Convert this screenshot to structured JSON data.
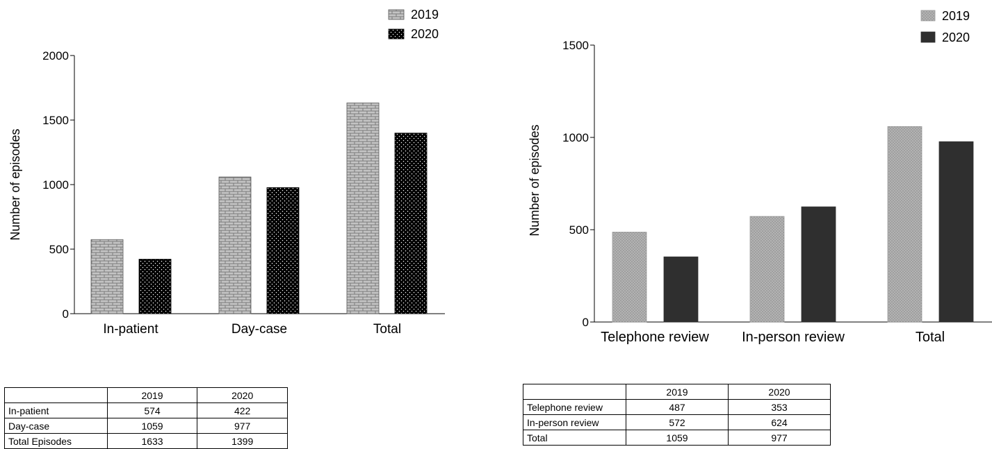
{
  "chart_data": [
    {
      "type": "bar",
      "categories": [
        "In-patient",
        "Day-case",
        "Total"
      ],
      "series": [
        {
          "name": "2019",
          "values": [
            574,
            1059,
            1633
          ]
        },
        {
          "name": "2020",
          "values": [
            422,
            977,
            1399
          ]
        }
      ],
      "ylabel": "Number of episodes",
      "ylim": [
        0,
        2000
      ],
      "yticks": [
        "0",
        "500",
        "1000",
        "1500",
        "2000"
      ],
      "legend_position": "top-right",
      "grid": false
    },
    {
      "type": "bar",
      "categories": [
        "Telephone review",
        "In-person review",
        "Total"
      ],
      "series": [
        {
          "name": "2019",
          "values": [
            487,
            572,
            1059
          ]
        },
        {
          "name": "2020",
          "values": [
            353,
            624,
            977
          ]
        }
      ],
      "ylabel": "Number of episodes",
      "ylim": [
        0,
        1500
      ],
      "yticks": [
        "0",
        "500",
        "1000",
        "1500"
      ],
      "legend_position": "top-right",
      "grid": false
    }
  ],
  "table_left": {
    "header": [
      "",
      "2019",
      "2020"
    ],
    "rows": [
      [
        "In-patient",
        "574",
        "422"
      ],
      [
        "Day-case",
        "1059",
        "977"
      ],
      [
        "Total Episodes",
        "1633",
        "1399"
      ]
    ]
  },
  "table_right": {
    "header": [
      "",
      "2019",
      "2020"
    ],
    "rows": [
      [
        "Telephone review",
        "487",
        "353"
      ],
      [
        "In-person review",
        "572",
        "624"
      ],
      [
        "Total",
        "1059",
        "977"
      ]
    ]
  }
}
